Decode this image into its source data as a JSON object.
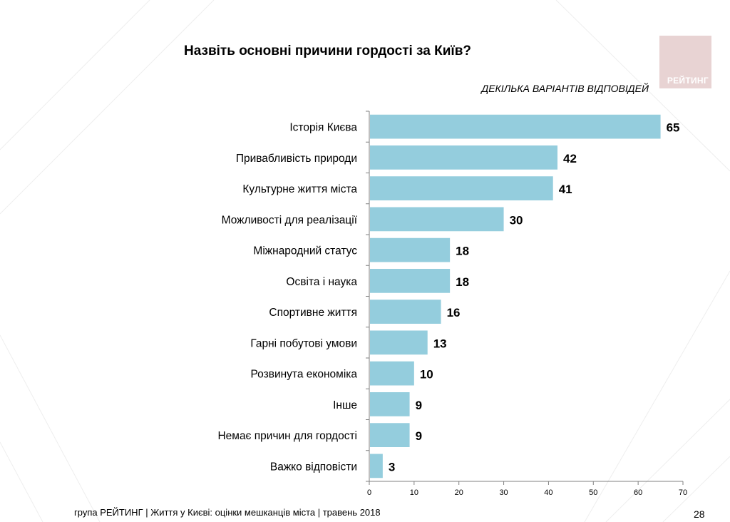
{
  "header": {
    "title": "Назвіть основні причини гордості за Київ?",
    "subtitle": "ДЕКІЛЬКА ВАРІАНТІВ ВІДПОВІДЕЙ",
    "logo_text": "РЕЙТИНГ"
  },
  "footer": {
    "source": "група РЕЙТИНГ  | Життя у Києві: оцінки мешканців міста |  травень 2018",
    "page_number": "28"
  },
  "colors": {
    "bar": "#94cddd",
    "axis": "#808080",
    "logo_bg": "#e8d3d3"
  },
  "chart_data": {
    "type": "bar",
    "orientation": "horizontal",
    "categories": [
      "Історія Києва",
      "Привабливість природи",
      "Культурне життя міста",
      "Можливості для реалізації",
      "Міжнародний статус",
      "Освіта і наука",
      "Спортивне життя",
      "Гарні побутові умови",
      "Розвинута економіка",
      "Інше",
      "Немає причин для гордості",
      "Важко відповісти"
    ],
    "values": [
      65,
      42,
      41,
      30,
      18,
      18,
      16,
      13,
      10,
      9,
      9,
      3
    ],
    "xlim": [
      0,
      70
    ],
    "xticks": [
      0,
      10,
      20,
      30,
      40,
      50,
      60,
      70
    ],
    "grid": false,
    "legend": "none"
  }
}
